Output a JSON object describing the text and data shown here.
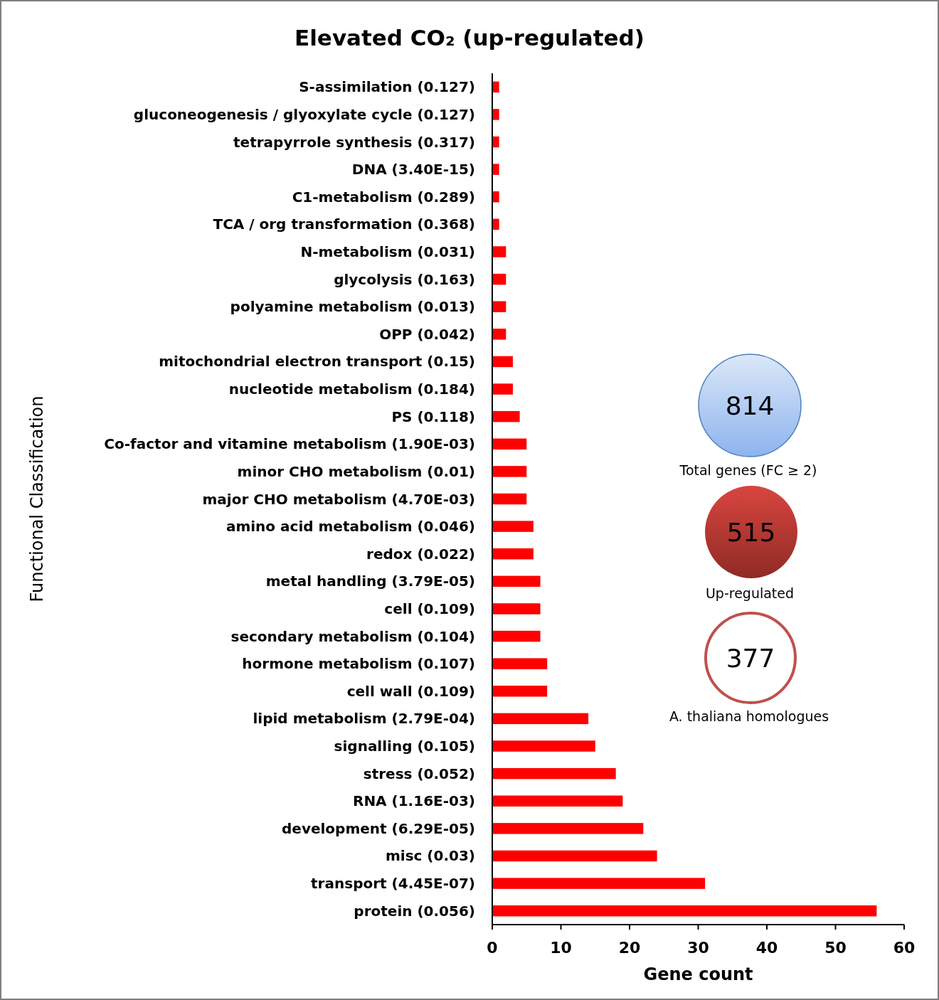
{
  "chart_data": {
    "type": "bar",
    "orientation": "horizontal",
    "title": "Elevated CO₂ (up-regulated)",
    "xlabel": "Gene count",
    "ylabel": "Functional Classification",
    "categories": [
      "S-assimilation (0.127)",
      "gluconeogenesis / glyoxylate cycle (0.127)",
      "tetrapyrrole synthesis (0.317)",
      "DNA (3.40E-15)",
      "C1-metabolism (0.289)",
      "TCA / org transformation (0.368)",
      "N-metabolism (0.031)",
      "glycolysis (0.163)",
      "polyamine metabolism (0.013)",
      "OPP (0.042)",
      "mitochondrial electron transport (0.15)",
      "nucleotide metabolism (0.184)",
      "PS (0.118)",
      "Co-factor and vitamine metabolism (1.90E-03)",
      "minor CHO metabolism (0.01)",
      "major CHO metabolism (4.70E-03)",
      "amino acid metabolism (0.046)",
      "redox (0.022)",
      "metal handling (3.79E-05)",
      "cell (0.109)",
      "secondary metabolism (0.104)",
      "hormone metabolism (0.107)",
      "cell wall (0.109)",
      "lipid metabolism (2.79E-04)",
      "signalling (0.105)",
      "stress (0.052)",
      "RNA (1.16E-03)",
      "development (6.29E-05)",
      "misc (0.03)",
      "transport (4.45E-07)",
      "protein (0.056)"
    ],
    "values": [
      1,
      1,
      1,
      1,
      1,
      1,
      2,
      2,
      2,
      2,
      3,
      3,
      4,
      5,
      5,
      5,
      6,
      6,
      7,
      7,
      7,
      8,
      8,
      14,
      15,
      18,
      19,
      22,
      24,
      31,
      56
    ],
    "color": "#ff0000",
    "xlim": [
      0,
      60
    ],
    "xticks": [
      0,
      10,
      20,
      30,
      40,
      50,
      60
    ],
    "grid": false,
    "annotations": [
      "814",
      "Total genes (FC ≥ 2)",
      "515",
      "Up-regulated",
      "377",
      "A. thaliana homologues"
    ]
  }
}
